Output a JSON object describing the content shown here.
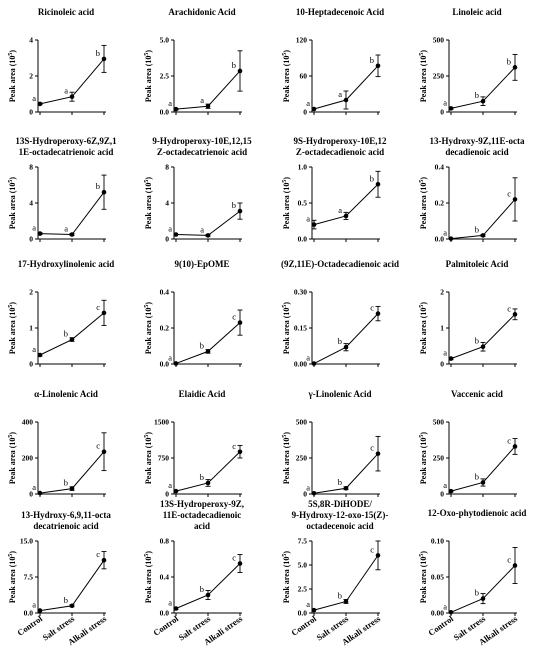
{
  "chart_data": [
    {
      "type": "line",
      "title_lines": [
        "Ricinoleic acid"
      ],
      "ylabel": "Peak area (10^5)",
      "ylim": [
        0,
        4
      ],
      "yticks": [
        "0",
        "2",
        "4"
      ],
      "categories": [
        "Control",
        "Salt stress",
        "Alkali stress"
      ],
      "values": [
        0.45,
        0.85,
        2.95
      ],
      "errors": [
        0.05,
        0.25,
        0.75
      ],
      "letters": [
        "a",
        "a",
        "b"
      ]
    },
    {
      "type": "line",
      "title_lines": [
        "Arachidonic Acid"
      ],
      "ylabel": "Peak area (10^5)",
      "ylim": [
        0,
        5
      ],
      "yticks": [
        "0.0",
        "2.5",
        "5.0"
      ],
      "categories": [
        "Control",
        "Salt stress",
        "Alkali stress"
      ],
      "values": [
        0.2,
        0.4,
        2.85
      ],
      "errors": [
        0.05,
        0.15,
        1.4
      ],
      "letters": [
        "a",
        "a",
        "b"
      ]
    },
    {
      "type": "line",
      "title_lines": [
        "10-Heptadecenoic Acid"
      ],
      "ylabel": "Peak area (10^5)",
      "ylim": [
        0,
        120
      ],
      "yticks": [
        "0",
        "60",
        "120"
      ],
      "categories": [
        "Control",
        "Salt stress",
        "Alkali stress"
      ],
      "values": [
        5,
        20,
        77
      ],
      "errors": [
        1,
        15,
        18
      ],
      "letters": [
        "a",
        "a",
        "b"
      ]
    },
    {
      "type": "line",
      "title_lines": [
        "Linoleic acid"
      ],
      "ylabel": "Peak area (10^5)",
      "ylim": [
        0,
        500
      ],
      "yticks": [
        "0",
        "250",
        "500"
      ],
      "categories": [
        "Control",
        "Salt stress",
        "Alkali stress"
      ],
      "values": [
        25,
        75,
        310
      ],
      "errors": [
        5,
        30,
        90
      ],
      "letters": [
        "a",
        "b",
        "b"
      ]
    },
    {
      "type": "line",
      "title_lines": [
        "13S-Hydroperoxy-6Z,9Z,1",
        "1E-octadecatrienoic acid"
      ],
      "ylabel": "Peak area (10^5)",
      "ylim": [
        0,
        8
      ],
      "yticks": [
        "0",
        "4",
        "8"
      ],
      "categories": [
        "Control",
        "Salt stress",
        "Alkali stress"
      ],
      "values": [
        0.6,
        0.5,
        5.2
      ],
      "errors": [
        0.1,
        0.1,
        1.9
      ],
      "letters": [
        "a",
        "a",
        "b"
      ]
    },
    {
      "type": "line",
      "title_lines": [
        "9-Hydroperoxy-10E,12,15",
        "Z-octadecatrienoic acid"
      ],
      "ylabel": "Peak area (10^5)",
      "ylim": [
        0,
        8
      ],
      "yticks": [
        "0",
        "4",
        "8"
      ],
      "categories": [
        "Control",
        "Salt stress",
        "Alkali stress"
      ],
      "values": [
        0.5,
        0.4,
        3.1
      ],
      "errors": [
        0.05,
        0.1,
        0.9
      ],
      "letters": [
        "a",
        "a",
        "b"
      ]
    },
    {
      "type": "line",
      "title_lines": [
        "9S-Hydroperoxy-10E,12",
        "Z-octadecadienoic acid"
      ],
      "ylabel": "Peak area (10^5)",
      "ylim": [
        0,
        1
      ],
      "yticks": [
        "0.0",
        "0.5",
        "1.0"
      ],
      "categories": [
        "Control",
        "Salt stress",
        "Alkali stress"
      ],
      "values": [
        0.2,
        0.32,
        0.76
      ],
      "errors": [
        0.06,
        0.05,
        0.18
      ],
      "letters": [
        "a",
        "a",
        "b"
      ]
    },
    {
      "type": "line",
      "title_lines": [
        "13-Hydroxy-9Z,11E-octa",
        "decadienoic acid"
      ],
      "ylabel": "Peak area (10^5)",
      "ylim": [
        0,
        0.4
      ],
      "yticks": [
        "0.0",
        "0.2",
        "0.4"
      ],
      "categories": [
        "Control",
        "Salt stress",
        "Alkali stress"
      ],
      "values": [
        0.002,
        0.02,
        0.22
      ],
      "errors": [
        0.001,
        0.005,
        0.12
      ],
      "letters": [
        "a",
        "b",
        "c"
      ]
    },
    {
      "type": "line",
      "title_lines": [
        "17-Hydroxylinolenic acid"
      ],
      "ylabel": "Peak area (10^5)",
      "ylim": [
        0,
        2
      ],
      "yticks": [
        "0",
        "1",
        "2"
      ],
      "categories": [
        "Control",
        "Salt stress",
        "Alkali stress"
      ],
      "values": [
        0.25,
        0.68,
        1.42
      ],
      "errors": [
        0.03,
        0.05,
        0.35
      ],
      "letters": [
        "a",
        "b",
        "c"
      ]
    },
    {
      "type": "line",
      "title_lines": [
        "9(10)-EpOME"
      ],
      "ylabel": "Peak area (10^5)",
      "ylim": [
        0,
        0.4
      ],
      "yticks": [
        "0.0",
        "0.2",
        "0.4"
      ],
      "categories": [
        "Control",
        "Salt stress",
        "Alkali stress"
      ],
      "values": [
        0.003,
        0.07,
        0.23
      ],
      "errors": [
        0.001,
        0.01,
        0.07
      ],
      "letters": [
        "a",
        "b",
        "c"
      ]
    },
    {
      "type": "line",
      "title_lines": [
        "(9Z,11E)-Octadecadienoic acid"
      ],
      "ylabel": "Peak area (10^5)",
      "ylim": [
        0,
        0.3
      ],
      "yticks": [
        "0.00",
        "0.15",
        "0.30"
      ],
      "categories": [
        "Control",
        "Salt stress",
        "Alkali stress"
      ],
      "values": [
        0.002,
        0.07,
        0.21
      ],
      "errors": [
        0.001,
        0.015,
        0.03
      ],
      "letters": [
        "a",
        "b",
        "c"
      ]
    },
    {
      "type": "line",
      "title_lines": [
        "Palmitoleic Acid"
      ],
      "ylabel": "Peak area (10^5)",
      "ylim": [
        0,
        2
      ],
      "yticks": [
        "0",
        "1",
        "2"
      ],
      "categories": [
        "Control",
        "Salt stress",
        "Alkali stress"
      ],
      "values": [
        0.15,
        0.48,
        1.38
      ],
      "errors": [
        0.03,
        0.12,
        0.15
      ],
      "letters": [
        "a",
        "b",
        "c"
      ]
    },
    {
      "type": "line",
      "title_lines": [
        "α-Linolenic Acid"
      ],
      "ylabel": "Peak area (10^5)",
      "ylim": [
        0,
        400
      ],
      "yticks": [
        "0",
        "200",
        "400"
      ],
      "categories": [
        "Control",
        "Salt stress",
        "Alkali stress"
      ],
      "values": [
        5,
        30,
        235
      ],
      "errors": [
        2,
        10,
        105
      ],
      "letters": [
        "a",
        "b",
        "c"
      ]
    },
    {
      "type": "line",
      "title_lines": [
        "Elaidic Acid"
      ],
      "ylabel": "Peak area (10^5)",
      "ylim": [
        0,
        1500
      ],
      "yticks": [
        "0",
        "750",
        "1500"
      ],
      "categories": [
        "Control",
        "Salt stress",
        "Alkali stress"
      ],
      "values": [
        60,
        230,
        880
      ],
      "errors": [
        10,
        70,
        130
      ],
      "letters": [
        "a",
        "b",
        "c"
      ]
    },
    {
      "type": "line",
      "title_lines": [
        "γ-Linolenic Acid"
      ],
      "ylabel": "Peak area (10^5)",
      "ylim": [
        0,
        500
      ],
      "yticks": [
        "0",
        "250",
        "500"
      ],
      "categories": [
        "Control",
        "Salt stress",
        "Alkali stress"
      ],
      "values": [
        5,
        40,
        280
      ],
      "errors": [
        2,
        10,
        120
      ],
      "letters": [
        "a",
        "b",
        "c"
      ]
    },
    {
      "type": "line",
      "title_lines": [
        "Vaccenic acid"
      ],
      "ylabel": "Peak area (10^5)",
      "ylim": [
        0,
        500
      ],
      "yticks": [
        "0",
        "250",
        "500"
      ],
      "categories": [
        "Control",
        "Salt stress",
        "Alkali stress"
      ],
      "values": [
        20,
        80,
        330
      ],
      "errors": [
        5,
        25,
        55
      ],
      "letters": [
        "a",
        "b",
        "c"
      ]
    },
    {
      "type": "line",
      "title_lines": [
        "13-Hydroxy-6,9,11-octa",
        "decatrienoic acid"
      ],
      "ylabel": "Peak area (10^5)",
      "ylim": [
        0,
        15
      ],
      "yticks": [
        "0.0",
        "7.5",
        "15.0"
      ],
      "categories": [
        "Control",
        "Salt stress",
        "Alkali stress"
      ],
      "values": [
        0.5,
        1.5,
        11
      ],
      "errors": [
        0.1,
        0.2,
        1.8
      ],
      "letters": [
        "a",
        "b",
        "c"
      ]
    },
    {
      "type": "line",
      "title_lines": [
        "13S-Hydroperoxy-9Z,",
        "11E-octadecadienoic",
        "acid"
      ],
      "ylabel": "Peak area (10^5)",
      "ylim": [
        0,
        0.8
      ],
      "yticks": [
        "0.0",
        "0.4",
        "0.8"
      ],
      "categories": [
        "Control",
        "Salt stress",
        "Alkali stress"
      ],
      "values": [
        0.05,
        0.2,
        0.55
      ],
      "errors": [
        0.01,
        0.05,
        0.1
      ],
      "letters": [
        "a",
        "b",
        "c"
      ]
    },
    {
      "type": "line",
      "title_lines": [
        "5S,8R-DiHODE/",
        "9-Hydroxy-12-oxo-15(Z)-",
        "octadecenoic acid"
      ],
      "ylabel": "Peak area (10^5)",
      "ylim": [
        0,
        7.5
      ],
      "yticks": [
        "0.0",
        "2.5",
        "5.0",
        "7.5"
      ],
      "categories": [
        "Control",
        "Salt stress",
        "Alkali stress"
      ],
      "values": [
        0.3,
        1.2,
        6
      ],
      "errors": [
        0.05,
        0.2,
        1.5
      ],
      "letters": [
        "a",
        "b",
        "c"
      ]
    },
    {
      "type": "line",
      "title_lines": [
        "12-Oxo-phytodienoic acid"
      ],
      "ylabel": "Peak area (10^5)",
      "ylim": [
        0,
        0.1
      ],
      "yticks": [
        "0.00",
        "0.05",
        "0.10"
      ],
      "categories": [
        "Control",
        "Salt stress",
        "Alkali stress"
      ],
      "values": [
        0.001,
        0.02,
        0.066
      ],
      "errors": [
        0.0005,
        0.007,
        0.025
      ],
      "letters": [
        "a",
        "b",
        "c"
      ]
    }
  ]
}
